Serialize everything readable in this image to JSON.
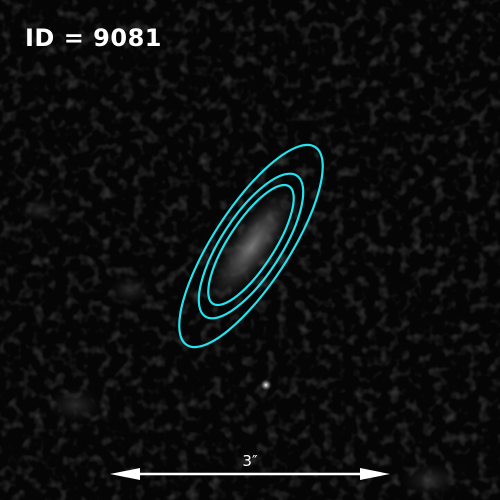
{
  "cutout": {
    "id_text": "ID = 9081",
    "scale_text": "3″"
  },
  "colors": {
    "background": "#050505",
    "contour": "#22e4ee",
    "label": "#ffffff",
    "scale_bar": "#ffffff"
  }
}
